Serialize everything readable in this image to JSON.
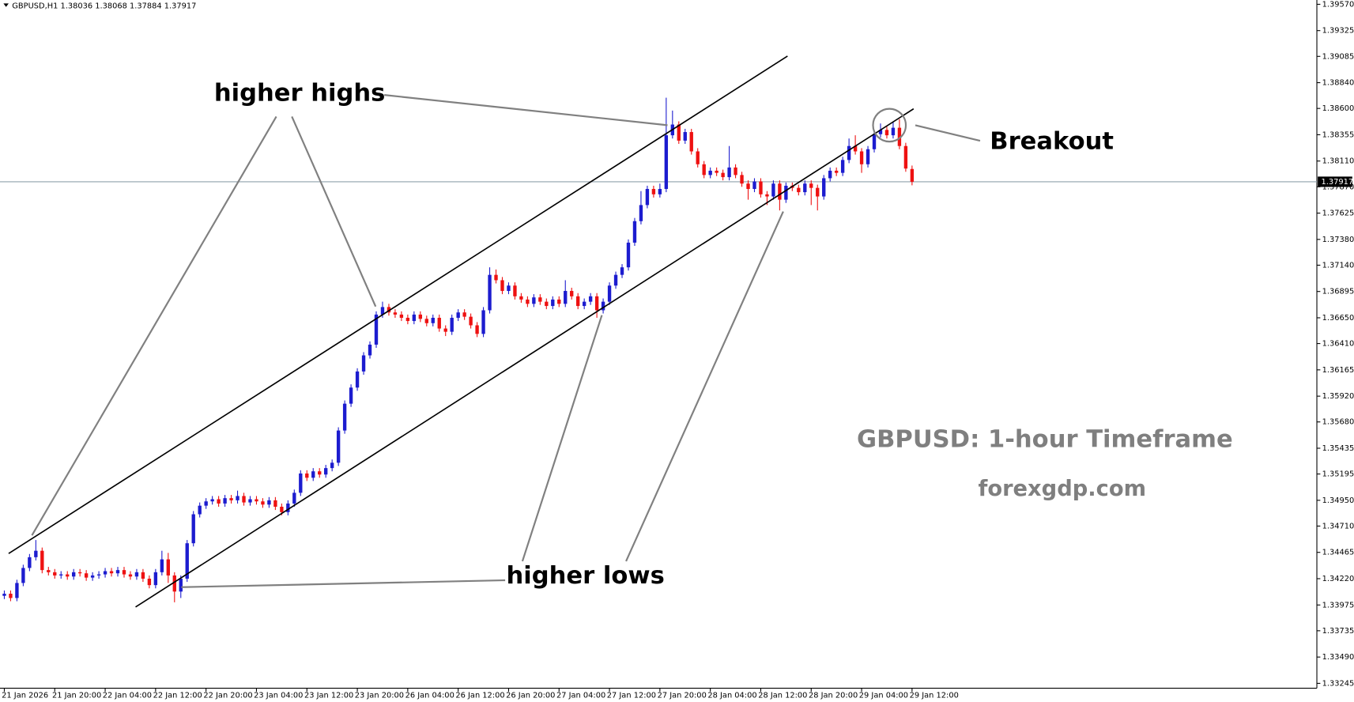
{
  "chart_data": {
    "type": "candlestick",
    "title": "GBPUSD,H1  1.38036 1.38068 1.37884 1.37917",
    "annotations": [
      "higher highs",
      "higher lows",
      "Breakout"
    ],
    "watermark": [
      "GBPUSD: 1-hour Timeframe",
      "forexgdp.com"
    ],
    "up_color": "#1c1ccf",
    "down_color": "#ee1111",
    "current_price": 1.37917,
    "ylim": [
      1.332,
      1.3961
    ],
    "yticks": [
      {
        "value": 1.3957,
        "label": "1.39570"
      },
      1.39325,
      1.39085,
      {
        "value": 1.3884,
        "label": "1.38840"
      },
      {
        "value": 1.386,
        "label": "1.38600"
      },
      1.38355,
      {
        "value": 1.3811,
        "label": "1.38110"
      },
      {
        "value": 1.3787,
        "label": "1.37870"
      },
      1.37625,
      {
        "value": 1.3738,
        "label": "1.37380"
      },
      {
        "value": 1.3714,
        "label": "1.37140"
      },
      1.36895,
      {
        "value": 1.3665,
        "label": "1.36650"
      },
      {
        "value": 1.3641,
        "label": "1.36410"
      },
      1.36165,
      {
        "value": 1.3592,
        "label": "1.35920"
      },
      {
        "value": 1.3568,
        "label": "1.35680"
      },
      1.35435,
      1.35195,
      {
        "value": 1.3495,
        "label": "1.34950"
      },
      {
        "value": 1.3471,
        "label": "1.34710"
      },
      1.34465,
      {
        "value": 1.3422,
        "label": "1.34220"
      },
      1.33975,
      1.33735,
      {
        "value": 1.3349,
        "label": "1.33490"
      },
      1.33245
    ],
    "categories": [
      "21 Jan 2026",
      null,
      null,
      null,
      null,
      null,
      null,
      null,
      "21 Jan 20:00",
      null,
      null,
      null,
      null,
      null,
      null,
      null,
      "22 Jan 04:00",
      null,
      null,
      null,
      null,
      null,
      null,
      null,
      "22 Jan 12:00",
      null,
      null,
      null,
      null,
      null,
      null,
      null,
      "22 Jan 20:00",
      null,
      null,
      null,
      null,
      null,
      null,
      null,
      "23 Jan 04:00",
      null,
      null,
      null,
      null,
      null,
      null,
      null,
      "23 Jan 12:00",
      null,
      null,
      null,
      null,
      null,
      null,
      null,
      "23 Jan 20:00",
      null,
      null,
      null,
      null,
      null,
      null,
      null,
      "26 Jan 04:00",
      null,
      null,
      null,
      null,
      null,
      null,
      null,
      "26 Jan 12:00",
      null,
      null,
      null,
      null,
      null,
      null,
      null,
      "26 Jan 20:00",
      null,
      null,
      null,
      null,
      null,
      null,
      null,
      "27 Jan 04:00",
      null,
      null,
      null,
      null,
      null,
      null,
      null,
      "27 Jan 12:00",
      null,
      null,
      null,
      null,
      null,
      null,
      null,
      "27 Jan 20:00",
      null,
      null,
      null,
      null,
      null,
      null,
      null,
      "28 Jan 04:00",
      null,
      null,
      null,
      null,
      null,
      null,
      null,
      "28 Jan 12:00",
      null,
      null,
      null,
      null,
      null,
      null,
      null,
      "28 Jan 20:00",
      null,
      null,
      null,
      null,
      null,
      null,
      null,
      "29 Jan 04:00",
      null,
      null,
      null,
      null,
      null,
      null,
      null,
      "29 Jan 12:00"
    ],
    "open": [
      1.3406,
      1.3408,
      1.3404,
      1.3418,
      1.3432,
      1.3442,
      1.3448,
      1.343,
      1.3428,
      1.3425,
      1.3426,
      1.3424,
      1.3428,
      1.3427,
      1.3423,
      1.3425,
      1.3426,
      1.3429,
      1.3427,
      1.343,
      1.3426,
      1.3424,
      1.3428,
      1.3422,
      1.3416,
      1.3428,
      1.344,
      1.3425,
      1.341,
      1.3422,
      1.3455,
      1.3482,
      1.349,
      1.3494,
      1.3496,
      1.3492,
      1.3497,
      1.3495,
      1.3499,
      1.3493,
      1.3496,
      1.3494,
      1.3491,
      1.3495,
      1.3489,
      1.3484,
      1.3492,
      1.3502,
      1.352,
      1.3516,
      1.3522,
      1.3519,
      1.3525,
      1.353,
      1.356,
      1.3585,
      1.36,
      1.3615,
      1.363,
      1.364,
      1.3668,
      1.3675,
      1.367,
      1.3668,
      1.3665,
      1.3662,
      1.3668,
      1.3664,
      1.366,
      1.3665,
      1.3655,
      1.3652,
      1.3665,
      1.367,
      1.3666,
      1.3658,
      1.365,
      1.3672,
      1.3705,
      1.37,
      1.369,
      1.3695,
      1.3685,
      1.3682,
      1.3678,
      1.3684,
      1.368,
      1.3676,
      1.3682,
      1.3678,
      1.369,
      1.3685,
      1.3676,
      1.368,
      1.3685,
      1.3672,
      1.368,
      1.3695,
      1.3705,
      1.3712,
      1.3735,
      1.3755,
      1.377,
      1.3785,
      1.378,
      1.3785,
      1.3835,
      1.3845,
      1.383,
      1.3838,
      1.382,
      1.3808,
      1.3798,
      1.3802,
      1.38,
      1.3796,
      1.3805,
      1.3798,
      1.379,
      1.3785,
      1.3792,
      1.378,
      1.3778,
      1.379,
      1.3775,
      1.3788,
      1.3786,
      1.3782,
      1.379,
      1.3786,
      1.3778,
      1.3795,
      1.3802,
      1.38,
      1.3812,
      1.3825,
      1.382,
      1.3808,
      1.3822,
      1.3836,
      1.384,
      1.3835,
      1.3842,
      1.3825,
      1.38036
    ],
    "high": [
      1.3411,
      1.3411,
      1.3421,
      1.3435,
      1.3445,
      1.3458,
      1.3451,
      1.3433,
      1.3431,
      1.3429,
      1.3429,
      1.3431,
      1.3431,
      1.343,
      1.3428,
      1.3429,
      1.3432,
      1.3432,
      1.3433,
      1.3433,
      1.3429,
      1.3431,
      1.3431,
      1.3425,
      1.3431,
      1.3448,
      1.3446,
      1.3428,
      1.3425,
      1.3458,
      1.3485,
      1.3493,
      1.3497,
      1.3499,
      1.3499,
      1.35,
      1.35,
      1.3504,
      1.3502,
      1.3499,
      1.3499,
      1.3497,
      1.3498,
      1.3498,
      1.3492,
      1.3495,
      1.3505,
      1.3523,
      1.3523,
      1.3525,
      1.3525,
      1.3528,
      1.3533,
      1.3563,
      1.3588,
      1.3603,
      1.3618,
      1.3633,
      1.3643,
      1.3671,
      1.368,
      1.3678,
      1.3673,
      1.3671,
      1.3668,
      1.3671,
      1.3671,
      1.3667,
      1.3668,
      1.3668,
      1.3658,
      1.3668,
      1.3673,
      1.3673,
      1.3669,
      1.3661,
      1.3675,
      1.3712,
      1.371,
      1.3703,
      1.3698,
      1.3698,
      1.3688,
      1.3685,
      1.3687,
      1.3687,
      1.3683,
      1.3685,
      1.3685,
      1.37,
      1.3693,
      1.3688,
      1.3683,
      1.3688,
      1.3688,
      1.3683,
      1.3698,
      1.3708,
      1.3715,
      1.3738,
      1.3758,
      1.3783,
      1.3788,
      1.3788,
      1.379,
      1.387,
      1.3858,
      1.3848,
      1.3841,
      1.3841,
      1.3823,
      1.3811,
      1.3805,
      1.3805,
      1.3803,
      1.3825,
      1.3808,
      1.3801,
      1.3793,
      1.3795,
      1.3795,
      1.3783,
      1.3793,
      1.3793,
      1.3791,
      1.3791,
      1.3789,
      1.3793,
      1.3793,
      1.3789,
      1.3798,
      1.3805,
      1.3805,
      1.3815,
      1.3832,
      1.3835,
      1.3823,
      1.3825,
      1.3839,
      1.3846,
      1.3843,
      1.3848,
      1.385,
      1.3828,
      1.38068
    ],
    "low": [
      1.3403,
      1.3401,
      1.3401,
      1.3415,
      1.3429,
      1.3439,
      1.3427,
      1.3425,
      1.3422,
      1.3422,
      1.3421,
      1.3421,
      1.3424,
      1.342,
      1.342,
      1.3422,
      1.3423,
      1.3424,
      1.3424,
      1.3423,
      1.3421,
      1.3421,
      1.3419,
      1.3413,
      1.3413,
      1.3425,
      1.3418,
      1.34,
      1.3404,
      1.3419,
      1.3452,
      1.3479,
      1.3487,
      1.3491,
      1.3489,
      1.3489,
      1.3492,
      1.3492,
      1.349,
      1.349,
      1.3491,
      1.3488,
      1.3488,
      1.3486,
      1.3481,
      1.3481,
      1.3489,
      1.3499,
      1.3513,
      1.3513,
      1.3516,
      1.3516,
      1.3522,
      1.3527,
      1.3557,
      1.3582,
      1.3597,
      1.3612,
      1.3627,
      1.3637,
      1.3665,
      1.3667,
      1.3665,
      1.3662,
      1.3659,
      1.3659,
      1.3661,
      1.3657,
      1.3657,
      1.3652,
      1.3648,
      1.3649,
      1.3662,
      1.3663,
      1.3655,
      1.3647,
      1.3647,
      1.3669,
      1.3697,
      1.3687,
      1.3687,
      1.3682,
      1.3679,
      1.3675,
      1.3675,
      1.3677,
      1.3673,
      1.3673,
      1.3675,
      1.3675,
      1.3682,
      1.3673,
      1.3673,
      1.3677,
      1.3665,
      1.3669,
      1.3677,
      1.3692,
      1.3702,
      1.3709,
      1.3732,
      1.3752,
      1.3767,
      1.3777,
      1.3777,
      1.3782,
      1.3832,
      1.3827,
      1.3827,
      1.3817,
      1.3805,
      1.3795,
      1.3795,
      1.3797,
      1.3793,
      1.3793,
      1.3795,
      1.3787,
      1.3775,
      1.3782,
      1.3777,
      1.377,
      1.3775,
      1.3765,
      1.3772,
      1.3783,
      1.3779,
      1.3779,
      1.377,
      1.3765,
      1.3775,
      1.3792,
      1.3797,
      1.3797,
      1.3809,
      1.3817,
      1.38,
      1.3805,
      1.3819,
      1.3833,
      1.3832,
      1.3832,
      1.3822,
      1.3801,
      1.37884
    ],
    "close": [
      1.3408,
      1.3404,
      1.3418,
      1.3432,
      1.3442,
      1.3448,
      1.343,
      1.3428,
      1.3425,
      1.3426,
      1.3424,
      1.3428,
      1.3427,
      1.3423,
      1.3425,
      1.3426,
      1.3429,
      1.3427,
      1.343,
      1.3426,
      1.3424,
      1.3428,
      1.3422,
      1.3416,
      1.3428,
      1.344,
      1.3425,
      1.341,
      1.3422,
      1.3455,
      1.3482,
      1.349,
      1.3494,
      1.3496,
      1.3492,
      1.3497,
      1.3495,
      1.3499,
      1.3493,
      1.3496,
      1.3494,
      1.3491,
      1.3495,
      1.3489,
      1.3484,
      1.3492,
      1.3502,
      1.352,
      1.3516,
      1.3522,
      1.3519,
      1.3525,
      1.353,
      1.356,
      1.3585,
      1.36,
      1.3615,
      1.363,
      1.364,
      1.3668,
      1.3675,
      1.367,
      1.3668,
      1.3665,
      1.3662,
      1.3668,
      1.3664,
      1.366,
      1.3665,
      1.3655,
      1.3652,
      1.3665,
      1.367,
      1.3666,
      1.3658,
      1.365,
      1.3672,
      1.3705,
      1.37,
      1.369,
      1.3695,
      1.3685,
      1.3682,
      1.3678,
      1.3684,
      1.368,
      1.3676,
      1.3682,
      1.3678,
      1.369,
      1.3685,
      1.3676,
      1.368,
      1.3685,
      1.3672,
      1.368,
      1.3695,
      1.3705,
      1.3712,
      1.3735,
      1.3755,
      1.377,
      1.3785,
      1.378,
      1.3785,
      1.3835,
      1.3845,
      1.383,
      1.3838,
      1.382,
      1.3808,
      1.3798,
      1.3802,
      1.38,
      1.3796,
      1.3805,
      1.3798,
      1.379,
      1.3785,
      1.3792,
      1.378,
      1.3778,
      1.379,
      1.3775,
      1.3788,
      1.3786,
      1.3782,
      1.379,
      1.3786,
      1.3778,
      1.3795,
      1.3802,
      1.38,
      1.3812,
      1.3825,
      1.382,
      1.3808,
      1.3822,
      1.3836,
      1.384,
      1.3835,
      1.3842,
      1.3825,
      1.3804,
      1.37917
    ]
  }
}
